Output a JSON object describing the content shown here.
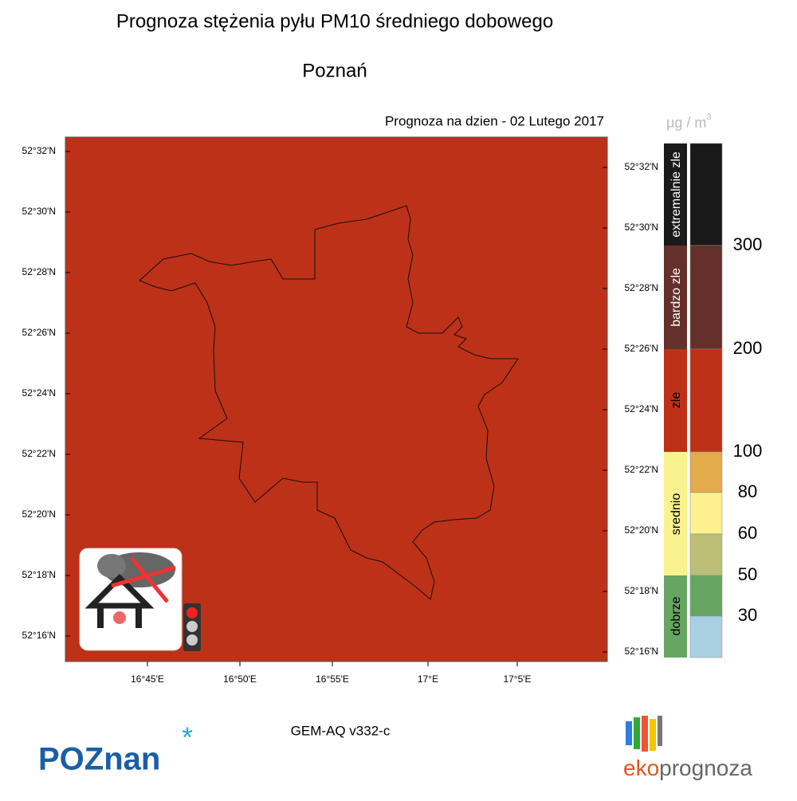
{
  "header": {
    "title": "Prognoza stężenia pyłu PM10 średniego dobowego",
    "city": "Poznań",
    "forecast_date": "Prognoza na dzien -  02 Lutego 2017",
    "unit": "μg / m",
    "unit_exp": "3"
  },
  "map": {
    "lat_labels_left": [
      "52°32'N",
      "52°30'N",
      "52°28'N",
      "52°26'N",
      "52°24'N",
      "52°22'N",
      "52°20'N",
      "52°18'N",
      "52°16'N"
    ],
    "lat_labels_right": [
      "52°32'N",
      "52°30'N",
      "52°28'N",
      "52°26'N",
      "52°24'N",
      "52°22'N",
      "52°20'N",
      "52°18'N",
      "52°16'N"
    ],
    "lon_labels": [
      "16°45'E",
      "16°50'E",
      "16°55'E",
      "17°E",
      "17°5'E"
    ]
  },
  "legend": {
    "categories": [
      "extremalnie zle",
      "bardzo zle",
      "zle",
      "srednio",
      "dobrze"
    ],
    "thresholds": [
      300,
      200,
      100,
      80,
      60,
      50,
      30
    ]
  },
  "footer": {
    "model": "GEM-AQ v332-c",
    "logo_left": "POZnan",
    "logo_right": [
      "eko",
      "prognoza"
    ]
  }
}
